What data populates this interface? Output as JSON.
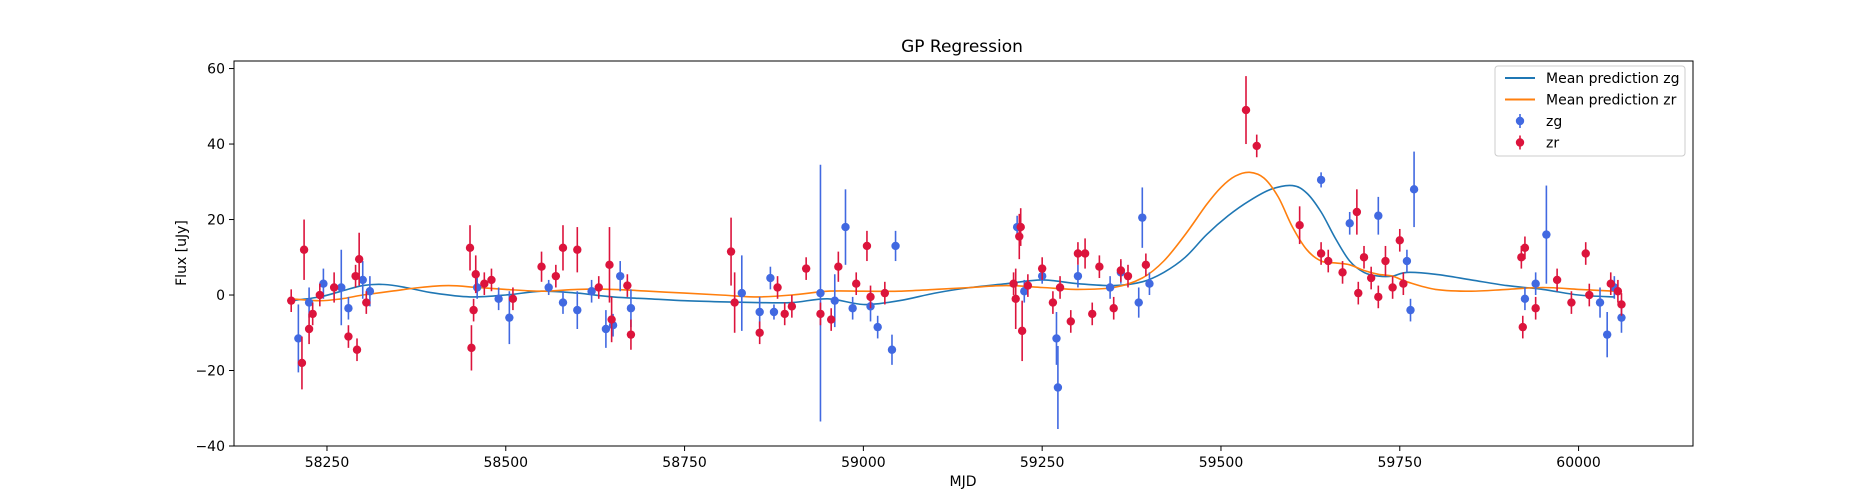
{
  "chart_data": {
    "type": "scatter",
    "title": "GP Regression",
    "xlabel": "MJD",
    "ylabel": "Flux [uJy]",
    "xlim": [
      58120,
      60160
    ],
    "ylim": [
      -40,
      62
    ],
    "xticks": [
      58250,
      58500,
      58750,
      59000,
      59250,
      59500,
      59750,
      60000
    ],
    "xtick_labels": [
      "58250",
      "58500",
      "58750",
      "59000",
      "59250",
      "59500",
      "59750",
      "60000"
    ],
    "yticks": [
      -40,
      -20,
      0,
      20,
      40,
      60
    ],
    "ytick_labels": [
      "−40",
      "−20",
      "0",
      "20",
      "40",
      "60"
    ],
    "grid": false,
    "legend_position": "top-right",
    "colors": {
      "mean_zg": "#1f77b4",
      "mean_zr": "#ff7f0e",
      "points_zg": "#4169e1",
      "points_zr": "#dc143c"
    },
    "legend": [
      {
        "label": "Mean prediction zg",
        "kind": "line",
        "color": "#1f77b4"
      },
      {
        "label": "Mean prediction zr",
        "kind": "line",
        "color": "#ff7f0e"
      },
      {
        "label": "zg",
        "kind": "errorbar",
        "color": "#4169e1"
      },
      {
        "label": "zr",
        "kind": "errorbar",
        "color": "#dc143c"
      }
    ],
    "lines": [
      {
        "name": "Mean prediction zg",
        "color": "#1f77b4",
        "x": [
          58200,
          58240,
          58270,
          58300,
          58330,
          58360,
          58400,
          58450,
          58500,
          58550,
          58600,
          58650,
          58700,
          58750,
          58800,
          58850,
          58900,
          58950,
          59000,
          59050,
          59100,
          59150,
          59200,
          59250,
          59300,
          59350,
          59390,
          59420,
          59450,
          59480,
          59510,
          59540,
          59570,
          59600,
          59620,
          59640,
          59660,
          59680,
          59700,
          59720,
          59740,
          59760,
          59800,
          59850,
          59900,
          59950,
          60000,
          60050
        ],
        "y": [
          -1.5,
          -0.5,
          1.0,
          2.5,
          2.8,
          2.0,
          0.5,
          -0.5,
          0.0,
          1.0,
          0.5,
          -0.5,
          -1.0,
          -1.5,
          -1.8,
          -2.0,
          -2.0,
          -1.0,
          -2.5,
          -1.5,
          0.5,
          2.0,
          3.0,
          4.0,
          3.0,
          2.5,
          3.5,
          6.0,
          10.0,
          16.0,
          21.0,
          25.0,
          28.0,
          29.0,
          27.0,
          22.0,
          15.0,
          9.0,
          6.0,
          5.0,
          5.0,
          6.0,
          5.5,
          4.0,
          2.5,
          1.5,
          0.0,
          -0.5
        ]
      },
      {
        "name": "Mean prediction zr",
        "color": "#ff7f0e",
        "x": [
          58200,
          58240,
          58270,
          58300,
          58340,
          58380,
          58420,
          58460,
          58500,
          58550,
          58600,
          58650,
          58700,
          58750,
          58800,
          58850,
          58900,
          58950,
          59000,
          59050,
          59100,
          59150,
          59200,
          59250,
          59300,
          59350,
          59390,
          59420,
          59450,
          59480,
          59500,
          59520,
          59540,
          59560,
          59580,
          59600,
          59620,
          59640,
          59660,
          59680,
          59700,
          59720,
          59740,
          59760,
          59800,
          59850,
          59900,
          59950,
          60000,
          60050
        ],
        "y": [
          -1.0,
          -1.5,
          -1.0,
          0.0,
          1.0,
          2.0,
          2.5,
          2.0,
          1.5,
          1.0,
          1.5,
          1.5,
          1.0,
          0.5,
          0.0,
          -0.5,
          0.0,
          1.0,
          1.0,
          1.0,
          1.5,
          2.0,
          2.5,
          2.0,
          1.5,
          2.0,
          4.5,
          9.0,
          16.0,
          24.0,
          28.5,
          31.5,
          32.5,
          31.0,
          26.0,
          18.0,
          12.0,
          9.0,
          8.5,
          8.0,
          6.5,
          5.5,
          5.0,
          3.5,
          1.5,
          1.0,
          1.5,
          2.0,
          1.5,
          1.0
        ]
      }
    ],
    "series": [
      {
        "name": "zg",
        "color": "#4169e1",
        "points": [
          {
            "x": 58210,
            "y": -11.5,
            "err": 9
          },
          {
            "x": 58225,
            "y": -2,
            "err": 4
          },
          {
            "x": 58245,
            "y": 3,
            "err": 4
          },
          {
            "x": 58270,
            "y": 2,
            "err": 10
          },
          {
            "x": 58280,
            "y": -3.5,
            "err": 3
          },
          {
            "x": 58300,
            "y": 4,
            "err": 5
          },
          {
            "x": 58310,
            "y": 1,
            "err": 4
          },
          {
            "x": 58460,
            "y": 2,
            "err": 3
          },
          {
            "x": 58490,
            "y": -1,
            "err": 3
          },
          {
            "x": 58505,
            "y": -6,
            "err": 7
          },
          {
            "x": 58560,
            "y": 2,
            "err": 2
          },
          {
            "x": 58580,
            "y": -2,
            "err": 3
          },
          {
            "x": 58600,
            "y": -4,
            "err": 5
          },
          {
            "x": 58620,
            "y": 1,
            "err": 3
          },
          {
            "x": 58640,
            "y": -9,
            "err": 5
          },
          {
            "x": 58650,
            "y": -8,
            "err": 3
          },
          {
            "x": 58660,
            "y": 5,
            "err": 4
          },
          {
            "x": 58675,
            "y": -3.5,
            "err": 5
          },
          {
            "x": 58830,
            "y": 0.5,
            "err": 10
          },
          {
            "x": 58855,
            "y": -4.5,
            "err": 4
          },
          {
            "x": 58870,
            "y": 4.5,
            "err": 3
          },
          {
            "x": 58875,
            "y": -4.5,
            "err": 2
          },
          {
            "x": 58940,
            "y": 0.5,
            "err": 34
          },
          {
            "x": 58960,
            "y": -1.5,
            "err": 7
          },
          {
            "x": 58975,
            "y": 18,
            "err": 10
          },
          {
            "x": 58985,
            "y": -3.5,
            "err": 3
          },
          {
            "x": 59010,
            "y": -3,
            "err": 4
          },
          {
            "x": 59020,
            "y": -8.5,
            "err": 3
          },
          {
            "x": 59040,
            "y": -14.5,
            "err": 4
          },
          {
            "x": 59045,
            "y": 13,
            "err": 4
          },
          {
            "x": 59215,
            "y": 18,
            "err": 3
          },
          {
            "x": 59225,
            "y": 1,
            "err": 3
          },
          {
            "x": 59250,
            "y": 5,
            "err": 2
          },
          {
            "x": 59270,
            "y": -11.5,
            "err": 7
          },
          {
            "x": 59272,
            "y": -24.5,
            "err": 11
          },
          {
            "x": 59300,
            "y": 5,
            "err": 3
          },
          {
            "x": 59345,
            "y": 2,
            "err": 3
          },
          {
            "x": 59360,
            "y": 6,
            "err": 3
          },
          {
            "x": 59385,
            "y": -2,
            "err": 4
          },
          {
            "x": 59390,
            "y": 20.5,
            "err": 8
          },
          {
            "x": 59400,
            "y": 3,
            "err": 3
          },
          {
            "x": 59640,
            "y": 30.5,
            "err": 2
          },
          {
            "x": 59680,
            "y": 19,
            "err": 3
          },
          {
            "x": 59720,
            "y": 21,
            "err": 5
          },
          {
            "x": 59760,
            "y": 9,
            "err": 3
          },
          {
            "x": 59765,
            "y": -4,
            "err": 3
          },
          {
            "x": 59770,
            "y": 28,
            "err": 10
          },
          {
            "x": 59925,
            "y": -1,
            "err": 3
          },
          {
            "x": 59940,
            "y": 3,
            "err": 3
          },
          {
            "x": 59955,
            "y": 16,
            "err": 13
          },
          {
            "x": 60030,
            "y": -2,
            "err": 4
          },
          {
            "x": 60040,
            "y": -10.5,
            "err": 6
          },
          {
            "x": 60050,
            "y": 2,
            "err": 3
          },
          {
            "x": 60060,
            "y": -6,
            "err": 4
          }
        ]
      },
      {
        "name": "zr",
        "color": "#dc143c",
        "points": [
          {
            "x": 58200,
            "y": -1.5,
            "err": 3
          },
          {
            "x": 58215,
            "y": -18,
            "err": 7
          },
          {
            "x": 58218,
            "y": 12,
            "err": 8
          },
          {
            "x": 58225,
            "y": -9,
            "err": 4
          },
          {
            "x": 58230,
            "y": -5,
            "err": 3
          },
          {
            "x": 58240,
            "y": 0,
            "err": 3
          },
          {
            "x": 58260,
            "y": 2,
            "err": 4
          },
          {
            "x": 58280,
            "y": -11,
            "err": 3
          },
          {
            "x": 58290,
            "y": 5,
            "err": 3
          },
          {
            "x": 58292,
            "y": -14.5,
            "err": 3
          },
          {
            "x": 58295,
            "y": 9.5,
            "err": 7
          },
          {
            "x": 58305,
            "y": -2,
            "err": 3
          },
          {
            "x": 58450,
            "y": 12.5,
            "err": 6
          },
          {
            "x": 58452,
            "y": -14,
            "err": 6
          },
          {
            "x": 58455,
            "y": -4,
            "err": 3
          },
          {
            "x": 58458,
            "y": 5.5,
            "err": 5
          },
          {
            "x": 58470,
            "y": 3,
            "err": 3
          },
          {
            "x": 58480,
            "y": 4,
            "err": 3
          },
          {
            "x": 58510,
            "y": -1,
            "err": 3
          },
          {
            "x": 58550,
            "y": 7.5,
            "err": 4
          },
          {
            "x": 58570,
            "y": 5,
            "err": 3
          },
          {
            "x": 58580,
            "y": 12.5,
            "err": 6
          },
          {
            "x": 58600,
            "y": 12,
            "err": 6
          },
          {
            "x": 58630,
            "y": 2,
            "err": 3
          },
          {
            "x": 58645,
            "y": 8,
            "err": 10
          },
          {
            "x": 58648,
            "y": -6.5,
            "err": 6
          },
          {
            "x": 58670,
            "y": 2.5,
            "err": 3
          },
          {
            "x": 58675,
            "y": -10.5,
            "err": 4
          },
          {
            "x": 58815,
            "y": 11.5,
            "err": 9
          },
          {
            "x": 58820,
            "y": -2,
            "err": 8
          },
          {
            "x": 58855,
            "y": -10,
            "err": 3
          },
          {
            "x": 58880,
            "y": 2,
            "err": 3
          },
          {
            "x": 58890,
            "y": -5,
            "err": 3
          },
          {
            "x": 58900,
            "y": -3,
            "err": 3
          },
          {
            "x": 58920,
            "y": 7,
            "err": 3
          },
          {
            "x": 58940,
            "y": -5,
            "err": 3
          },
          {
            "x": 58955,
            "y": -6.5,
            "err": 3
          },
          {
            "x": 58965,
            "y": 7.5,
            "err": 4
          },
          {
            "x": 58990,
            "y": 3,
            "err": 3
          },
          {
            "x": 59005,
            "y": 13,
            "err": 4
          },
          {
            "x": 59010,
            "y": -0.5,
            "err": 3
          },
          {
            "x": 59030,
            "y": 0.5,
            "err": 3
          },
          {
            "x": 59210,
            "y": 3,
            "err": 3
          },
          {
            "x": 59213,
            "y": -1,
            "err": 8
          },
          {
            "x": 59218,
            "y": 15.5,
            "err": 6
          },
          {
            "x": 59220,
            "y": 18,
            "err": 5
          },
          {
            "x": 59222,
            "y": -9.5,
            "err": 8
          },
          {
            "x": 59230,
            "y": 2.5,
            "err": 3
          },
          {
            "x": 59250,
            "y": 7,
            "err": 3
          },
          {
            "x": 59265,
            "y": -2,
            "err": 3
          },
          {
            "x": 59275,
            "y": 2,
            "err": 3
          },
          {
            "x": 59290,
            "y": -7,
            "err": 3
          },
          {
            "x": 59300,
            "y": 11,
            "err": 3
          },
          {
            "x": 59310,
            "y": 11,
            "err": 4
          },
          {
            "x": 59320,
            "y": -5,
            "err": 3
          },
          {
            "x": 59330,
            "y": 7.5,
            "err": 3
          },
          {
            "x": 59350,
            "y": -3.5,
            "err": 3
          },
          {
            "x": 59360,
            "y": 6.5,
            "err": 3
          },
          {
            "x": 59370,
            "y": 5,
            "err": 3
          },
          {
            "x": 59395,
            "y": 8,
            "err": 3
          },
          {
            "x": 59535,
            "y": 49,
            "err": 9
          },
          {
            "x": 59550,
            "y": 39.5,
            "err": 3
          },
          {
            "x": 59610,
            "y": 18.5,
            "err": 5
          },
          {
            "x": 59640,
            "y": 11,
            "err": 3
          },
          {
            "x": 59650,
            "y": 9,
            "err": 3
          },
          {
            "x": 59670,
            "y": 6,
            "err": 3
          },
          {
            "x": 59690,
            "y": 22,
            "err": 6
          },
          {
            "x": 59692,
            "y": 0.5,
            "err": 3
          },
          {
            "x": 59700,
            "y": 10,
            "err": 3
          },
          {
            "x": 59710,
            "y": 4.5,
            "err": 3
          },
          {
            "x": 59720,
            "y": -0.5,
            "err": 3
          },
          {
            "x": 59730,
            "y": 9,
            "err": 4
          },
          {
            "x": 59740,
            "y": 2,
            "err": 3
          },
          {
            "x": 59750,
            "y": 14.5,
            "err": 3
          },
          {
            "x": 59755,
            "y": 3,
            "err": 3
          },
          {
            "x": 59920,
            "y": 10,
            "err": 3
          },
          {
            "x": 59922,
            "y": -8.5,
            "err": 3
          },
          {
            "x": 59925,
            "y": 12.5,
            "err": 3
          },
          {
            "x": 59940,
            "y": -3.5,
            "err": 3
          },
          {
            "x": 59970,
            "y": 4,
            "err": 3
          },
          {
            "x": 59990,
            "y": -2,
            "err": 3
          },
          {
            "x": 60010,
            "y": 11,
            "err": 3
          },
          {
            "x": 60015,
            "y": 0,
            "err": 3
          },
          {
            "x": 60045,
            "y": 3,
            "err": 3
          },
          {
            "x": 60055,
            "y": 1,
            "err": 3
          },
          {
            "x": 60060,
            "y": -2.5,
            "err": 3
          }
        ]
      }
    ]
  }
}
